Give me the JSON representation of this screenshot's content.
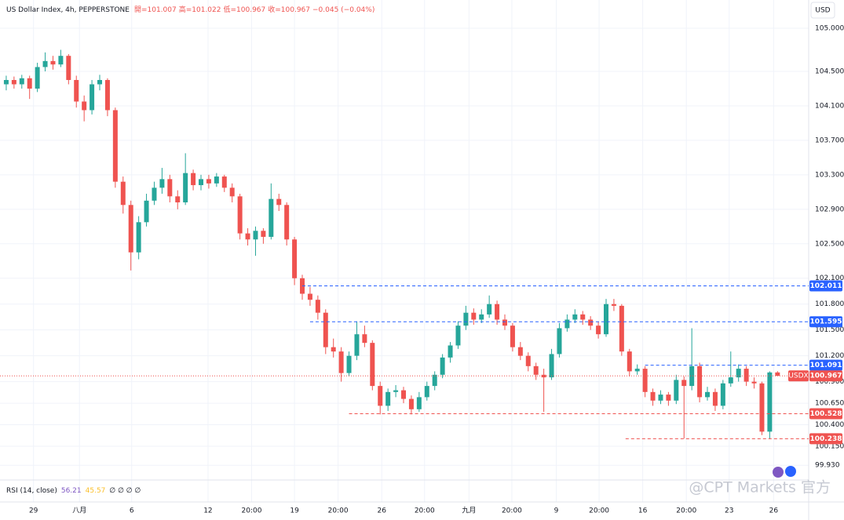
{
  "chart_data": {
    "type": "candlestick",
    "title": "US Dollar Index, 4h, PEPPERSTONE",
    "ohlc_header": [
      "開=101.007",
      "高=101.022",
      "低=100.967",
      "收=100.967",
      "−0.045 (−0.04%)"
    ],
    "currency": "USD",
    "up_color": "#26a69a",
    "down_color": "#ef5350",
    "open": [
      104.35,
      104.4,
      104.35,
      104.42,
      104.3,
      104.55,
      104.62,
      104.58,
      104.68,
      104.4,
      104.15,
      104.05,
      104.35,
      104.4,
      104.05,
      103.22,
      102.95,
      102.4,
      102.75,
      103.0,
      103.15,
      103.25,
      103.05,
      102.98,
      103.32,
      103.18,
      103.25,
      103.2,
      103.28,
      103.15,
      103.05,
      102.62,
      102.55,
      102.65,
      102.58,
      103.02,
      102.95,
      102.55,
      102.1,
      101.92,
      101.85,
      101.7,
      101.3,
      101.25,
      101.0,
      101.2,
      101.45,
      101.35,
      100.85,
      100.62,
      100.78,
      100.8,
      100.7,
      100.58,
      100.72,
      100.85,
      100.98,
      101.18,
      101.32,
      101.55,
      101.7,
      101.62,
      101.68,
      101.8,
      101.62,
      101.55,
      101.3,
      101.2,
      101.08,
      100.98,
      100.95,
      101.22,
      101.52,
      101.62,
      101.68,
      101.62,
      101.55,
      101.45,
      101.8,
      101.78,
      101.25,
      101.02,
      101.05,
      100.78,
      100.68,
      100.75,
      100.68,
      100.92,
      100.85,
      101.08,
      100.72,
      100.78,
      100.62,
      100.88,
      100.95,
      101.05,
      100.9,
      100.88,
      100.32,
      101.007
    ],
    "high": [
      104.45,
      104.44,
      104.46,
      104.45,
      104.6,
      104.72,
      104.68,
      104.75,
      104.7,
      104.45,
      104.22,
      104.4,
      104.46,
      104.42,
      104.08,
      103.28,
      103.0,
      102.82,
      103.08,
      103.22,
      103.38,
      103.3,
      103.12,
      103.55,
      103.36,
      103.3,
      103.3,
      103.32,
      103.3,
      103.2,
      103.08,
      102.68,
      102.7,
      102.68,
      103.2,
      103.08,
      102.98,
      102.58,
      102.14,
      102.0,
      101.9,
      101.74,
      101.4,
      101.3,
      101.25,
      101.6,
      101.55,
      101.38,
      100.9,
      100.82,
      100.86,
      100.84,
      100.74,
      100.78,
      100.9,
      101.02,
      101.22,
      101.36,
      101.6,
      101.78,
      101.75,
      101.74,
      101.9,
      101.84,
      101.68,
      101.58,
      101.36,
      101.24,
      101.12,
      101.05,
      101.28,
      101.58,
      101.68,
      101.74,
      101.72,
      101.66,
      101.6,
      101.86,
      101.86,
      101.8,
      101.28,
      101.1,
      101.08,
      100.82,
      100.8,
      100.78,
      100.98,
      100.96,
      101.52,
      101.12,
      100.84,
      100.82,
      100.92,
      101.25,
      101.1,
      101.08,
      100.95,
      100.9,
      101.02,
      101.022
    ],
    "low": [
      104.28,
      104.3,
      104.3,
      104.18,
      104.26,
      104.5,
      104.52,
      104.55,
      104.35,
      104.08,
      103.92,
      104.0,
      104.28,
      103.98,
      103.15,
      102.85,
      102.19,
      102.32,
      102.7,
      102.95,
      103.08,
      102.98,
      102.9,
      102.95,
      103.12,
      103.12,
      103.14,
      103.16,
      103.1,
      102.98,
      102.55,
      102.48,
      102.36,
      102.5,
      102.55,
      102.88,
      102.48,
      102.02,
      101.85,
      101.78,
      101.62,
      101.22,
      101.18,
      100.9,
      100.96,
      101.15,
      101.3,
      100.8,
      100.52,
      100.56,
      100.72,
      100.65,
      100.52,
      100.55,
      100.68,
      100.8,
      100.94,
      101.12,
      101.28,
      101.5,
      101.56,
      101.58,
      101.64,
      101.56,
      101.5,
      101.25,
      101.15,
      101.02,
      100.92,
      100.55,
      100.92,
      101.18,
      101.48,
      101.58,
      101.56,
      101.5,
      101.4,
      101.42,
      101.72,
      101.2,
      100.96,
      100.98,
      100.72,
      100.62,
      100.64,
      100.62,
      100.64,
      100.24,
      100.8,
      100.66,
      100.68,
      100.56,
      100.58,
      100.84,
      100.9,
      100.85,
      100.82,
      100.28,
      100.24,
      100.967
    ],
    "close": [
      104.4,
      104.35,
      104.42,
      104.3,
      104.55,
      104.62,
      104.58,
      104.68,
      104.4,
      104.15,
      104.05,
      104.35,
      104.4,
      104.05,
      103.22,
      102.95,
      102.4,
      102.75,
      103.0,
      103.15,
      103.25,
      103.05,
      102.98,
      103.32,
      103.18,
      103.25,
      103.2,
      103.28,
      103.15,
      103.05,
      102.62,
      102.55,
      102.65,
      102.58,
      103.02,
      102.95,
      102.55,
      102.1,
      101.92,
      101.85,
      101.7,
      101.3,
      101.25,
      101.0,
      101.2,
      101.45,
      101.35,
      100.85,
      100.62,
      100.78,
      100.8,
      100.7,
      100.58,
      100.72,
      100.85,
      100.98,
      101.18,
      101.32,
      101.55,
      101.7,
      101.62,
      101.68,
      101.8,
      101.62,
      101.55,
      101.3,
      101.2,
      101.08,
      100.98,
      100.95,
      101.22,
      101.52,
      101.62,
      101.68,
      101.62,
      101.55,
      101.45,
      101.8,
      101.78,
      101.25,
      101.02,
      101.05,
      100.78,
      100.68,
      100.75,
      100.68,
      100.92,
      100.85,
      101.08,
      100.72,
      100.78,
      100.62,
      100.88,
      100.95,
      101.05,
      100.9,
      100.88,
      100.32,
      101.007,
      100.967
    ],
    "xlim": [
      -0.8,
      103
    ],
    "xticks": [
      {
        "value": 3.5,
        "label": "29"
      },
      {
        "value": 9.4,
        "label": "八月"
      },
      {
        "value": 16.1,
        "label": "6"
      },
      {
        "value": 25.9,
        "label": "12"
      },
      {
        "value": 31.5,
        "label": "20:00"
      },
      {
        "value": 37,
        "label": "19"
      },
      {
        "value": 42.6,
        "label": "20:00"
      },
      {
        "value": 48.2,
        "label": "26"
      },
      {
        "value": 53.7,
        "label": "20:00"
      },
      {
        "value": 59.4,
        "label": "九月"
      },
      {
        "value": 64.9,
        "label": "20:00"
      },
      {
        "value": 70.6,
        "label": "9"
      },
      {
        "value": 76.1,
        "label": "20:00"
      },
      {
        "value": 81.7,
        "label": "16"
      },
      {
        "value": 87.3,
        "label": "20:00"
      },
      {
        "value": 92.8,
        "label": "23"
      },
      {
        "value": 98.5,
        "label": "26"
      }
    ],
    "ylim": [
      99.759,
      105.328
    ],
    "yticks": [
      {
        "value": 105,
        "label": "105.000"
      },
      {
        "value": 104.5,
        "label": "104.500"
      },
      {
        "value": 104.1,
        "label": "104.100"
      },
      {
        "value": 103.7,
        "label": "103.700"
      },
      {
        "value": 103.3,
        "label": "103.300"
      },
      {
        "value": 102.9,
        "label": "102.900"
      },
      {
        "value": 102.5,
        "label": "102.500"
      },
      {
        "value": 102.1,
        "label": "102.100"
      },
      {
        "value": 101.8,
        "label": "101.800"
      },
      {
        "value": 101.5,
        "label": "101.500"
      },
      {
        "value": 101.2,
        "label": "101.200"
      },
      {
        "value": 100.9,
        "label": "100.900"
      },
      {
        "value": 100.65,
        "label": "100.650"
      },
      {
        "value": 100.4,
        "label": "100.400"
      },
      {
        "value": 100.15,
        "label": "100.150"
      },
      {
        "value": 99.93,
        "label": "99.930"
      }
    ],
    "grid": true,
    "price_lines": [
      {
        "value": 102.011,
        "color": "#2962ff",
        "style": "dashed",
        "from": 38
      },
      {
        "value": 101.595,
        "color": "#2962ff",
        "style": "dashed",
        "from": 39
      },
      {
        "value": 101.091,
        "color": "#2962ff",
        "style": "dashed",
        "from": 82
      },
      {
        "value": 100.967,
        "color": "#ef5350",
        "style": "dotted",
        "from": -0.8,
        "symbol": "USDX"
      },
      {
        "value": 100.528,
        "color": "#ef5350",
        "style": "dashed",
        "from": 44
      },
      {
        "value": 100.238,
        "color": "#ef5350",
        "style": "dashed",
        "from": 79.5
      }
    ],
    "rsi": {
      "label": "RSI (14, close)",
      "values": [
        56.21,
        45.57
      ],
      "colors": [
        "#7e57c2",
        "#fbc02d"
      ],
      "placeholders": "∅ ∅ ∅ ∅"
    },
    "watermark": "@CPT Markets 官方"
  }
}
